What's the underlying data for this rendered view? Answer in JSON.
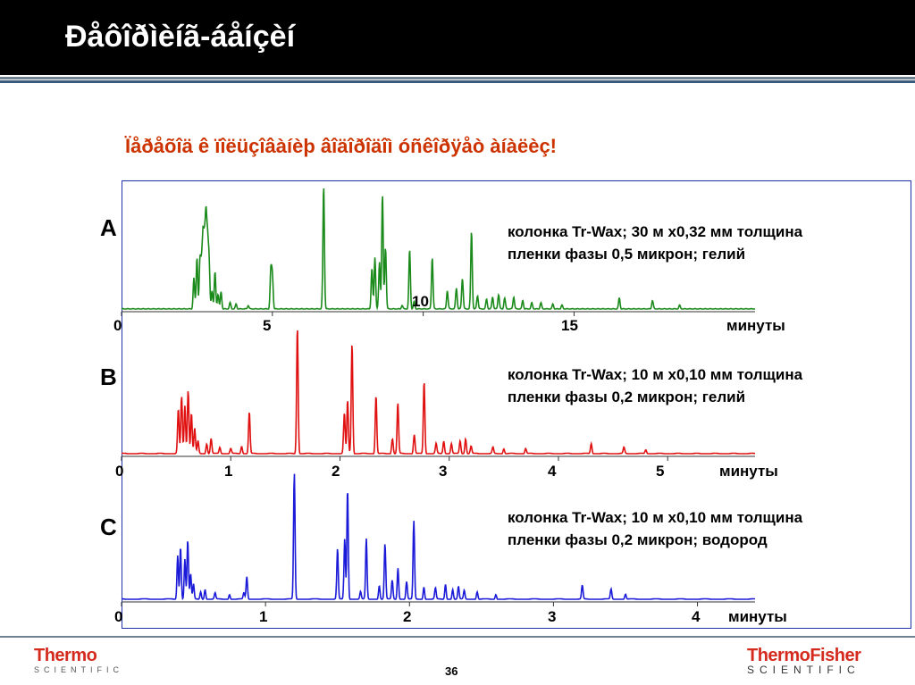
{
  "slide": {
    "title": "Ðåôîðìèíã-áåíçèí",
    "subtitle": "Ïåðåõîä ê ïîëüçîâàíèþ âîäîðîäîì óñêîðÿåò àíàëèç!",
    "page_number": "36",
    "logo_left": {
      "main": "Thermo",
      "sub": "SCIENTIFIC"
    },
    "logo_right": {
      "main": "ThermoFisher",
      "sub": "SCIENTIFIC"
    }
  },
  "chart_data": [
    {
      "type": "line",
      "label": "A",
      "color": "#1a8a1a",
      "description": [
        "колонка Tr-Wax; 30 м x0,32 мм толщина",
        "пленки фазы 0,5 микрон; гелий"
      ],
      "xlabel": "минуты",
      "xlim": [
        0,
        21
      ],
      "tick_labels": [
        "0",
        "5",
        "10",
        "15"
      ],
      "tick_values": [
        0,
        5,
        10,
        15
      ],
      "peaks": [
        [
          2.4,
          0.25
        ],
        [
          2.5,
          0.42
        ],
        [
          2.6,
          0.38
        ],
        [
          2.65,
          0.32
        ],
        [
          2.7,
          0.56
        ],
        [
          2.75,
          0.5
        ],
        [
          2.8,
          0.7
        ],
        [
          2.85,
          0.52
        ],
        [
          2.9,
          0.4
        ],
        [
          3.0,
          0.15
        ],
        [
          3.1,
          0.3
        ],
        [
          3.2,
          0.12
        ],
        [
          3.3,
          0.14
        ],
        [
          3.6,
          0.05
        ],
        [
          3.8,
          0.04
        ],
        [
          4.2,
          0.03
        ],
        [
          4.95,
          0.31
        ],
        [
          5.0,
          0.27
        ],
        [
          6.7,
          1.0
        ],
        [
          8.3,
          0.33
        ],
        [
          8.4,
          0.42
        ],
        [
          8.55,
          0.38
        ],
        [
          8.65,
          0.93
        ],
        [
          8.75,
          0.5
        ],
        [
          9.3,
          0.03
        ],
        [
          9.55,
          0.48
        ],
        [
          9.7,
          0.06
        ],
        [
          10.3,
          0.42
        ],
        [
          10.8,
          0.15
        ],
        [
          11.1,
          0.17
        ],
        [
          11.3,
          0.25
        ],
        [
          11.6,
          0.63
        ],
        [
          11.8,
          0.11
        ],
        [
          12.1,
          0.08
        ],
        [
          12.3,
          0.1
        ],
        [
          12.5,
          0.12
        ],
        [
          12.7,
          0.09
        ],
        [
          13.0,
          0.1
        ],
        [
          13.3,
          0.07
        ],
        [
          13.6,
          0.05
        ],
        [
          13.9,
          0.05
        ],
        [
          14.3,
          0.04
        ],
        [
          14.6,
          0.03
        ],
        [
          16.5,
          0.09
        ],
        [
          17.6,
          0.07
        ],
        [
          18.5,
          0.03
        ]
      ]
    },
    {
      "type": "line",
      "label": "B",
      "color": "#e01010",
      "description": [
        "колонка Tr-Wax; 10 м x0,10 мм толщина",
        "пленки фазы 0,2 микрон; гелий"
      ],
      "xlabel": "минуты",
      "xlim": [
        0,
        5.8
      ],
      "tick_labels": [
        "0",
        "1",
        "2",
        "3",
        "4",
        "5"
      ],
      "tick_values": [
        0,
        1,
        2,
        3,
        4,
        5
      ],
      "peaks": [
        [
          0.52,
          0.35
        ],
        [
          0.55,
          0.45
        ],
        [
          0.58,
          0.38
        ],
        [
          0.61,
          0.5
        ],
        [
          0.64,
          0.32
        ],
        [
          0.67,
          0.2
        ],
        [
          0.7,
          0.1
        ],
        [
          0.78,
          0.08
        ],
        [
          0.82,
          0.12
        ],
        [
          0.9,
          0.05
        ],
        [
          1.0,
          0.04
        ],
        [
          1.1,
          0.06
        ],
        [
          1.17,
          0.33
        ],
        [
          1.61,
          1.0
        ],
        [
          2.04,
          0.32
        ],
        [
          2.07,
          0.42
        ],
        [
          2.11,
          0.87
        ],
        [
          2.33,
          0.46
        ],
        [
          2.48,
          0.12
        ],
        [
          2.53,
          0.4
        ],
        [
          2.68,
          0.15
        ],
        [
          2.77,
          0.57
        ],
        [
          2.88,
          0.08
        ],
        [
          2.95,
          0.1
        ],
        [
          3.02,
          0.08
        ],
        [
          3.1,
          0.1
        ],
        [
          3.15,
          0.12
        ],
        [
          3.2,
          0.06
        ],
        [
          3.4,
          0.05
        ],
        [
          3.5,
          0.04
        ],
        [
          3.7,
          0.04
        ],
        [
          4.3,
          0.08
        ],
        [
          4.6,
          0.05
        ],
        [
          4.8,
          0.03
        ]
      ]
    },
    {
      "type": "line",
      "label": "C",
      "color": "#1a1ad8",
      "description": [
        "колонка Tr-Wax; 10 м x0,10 мм толщина",
        "пленки фазы 0,2 микрон; водород"
      ],
      "xlabel": "минуты",
      "xlim": [
        0,
        4.4
      ],
      "tick_labels": [
        "0",
        "1",
        "2",
        "3",
        "4"
      ],
      "tick_values": [
        0,
        1,
        2,
        3,
        4
      ],
      "peaks": [
        [
          0.39,
          0.35
        ],
        [
          0.41,
          0.42
        ],
        [
          0.44,
          0.32
        ],
        [
          0.46,
          0.47
        ],
        [
          0.48,
          0.2
        ],
        [
          0.5,
          0.12
        ],
        [
          0.55,
          0.06
        ],
        [
          0.58,
          0.08
        ],
        [
          0.65,
          0.05
        ],
        [
          0.75,
          0.04
        ],
        [
          0.85,
          0.05
        ],
        [
          0.87,
          0.18
        ],
        [
          1.2,
          1.0
        ],
        [
          1.5,
          0.4
        ],
        [
          1.55,
          0.48
        ],
        [
          1.57,
          0.88
        ],
        [
          1.66,
          0.06
        ],
        [
          1.7,
          0.48
        ],
        [
          1.79,
          0.11
        ],
        [
          1.83,
          0.44
        ],
        [
          1.88,
          0.15
        ],
        [
          1.92,
          0.25
        ],
        [
          1.98,
          0.14
        ],
        [
          2.03,
          0.62
        ],
        [
          2.1,
          0.1
        ],
        [
          2.18,
          0.09
        ],
        [
          2.25,
          0.12
        ],
        [
          2.3,
          0.08
        ],
        [
          2.34,
          0.1
        ],
        [
          2.38,
          0.07
        ],
        [
          2.47,
          0.06
        ],
        [
          2.6,
          0.04
        ],
        [
          3.2,
          0.11
        ],
        [
          3.4,
          0.08
        ],
        [
          3.5,
          0.04
        ]
      ]
    }
  ]
}
